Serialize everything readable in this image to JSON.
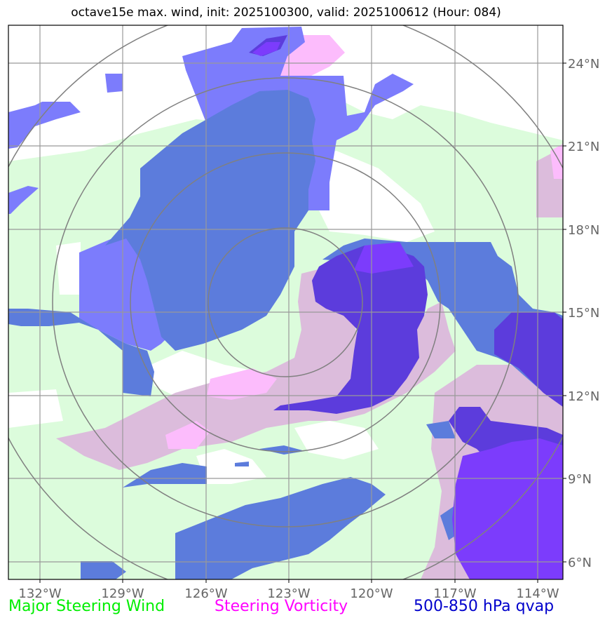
{
  "title": "octave15e max. wind, init: 2025100300, valid: 2025100612 (Hour: 084)",
  "map": {
    "lon_ticks": [
      "132°W",
      "129°W",
      "126°W",
      "123°W",
      "120°W",
      "117°W",
      "114°W"
    ],
    "lat_ticks": [
      "24°N",
      "21°N",
      "18°N",
      "15°N",
      "12°N",
      "9°N",
      "6°N"
    ],
    "colors": {
      "steering_wind": "#dcfcdc",
      "vorticity_low": "#dcbcdc",
      "vorticity_high": "#fcbcfc",
      "qvap_1": "#7c7cfc",
      "qvap_2": "#5c7cdc",
      "qvap_3": "#5c3cdc",
      "qvap_4": "#7c3cfc",
      "grid": "#999999",
      "range_rings": "#808080"
    }
  },
  "legend": {
    "wind": "Major Steering Wind",
    "vorticity": "Steering Vorticity",
    "qvap": "500-850 hPa qvap"
  }
}
